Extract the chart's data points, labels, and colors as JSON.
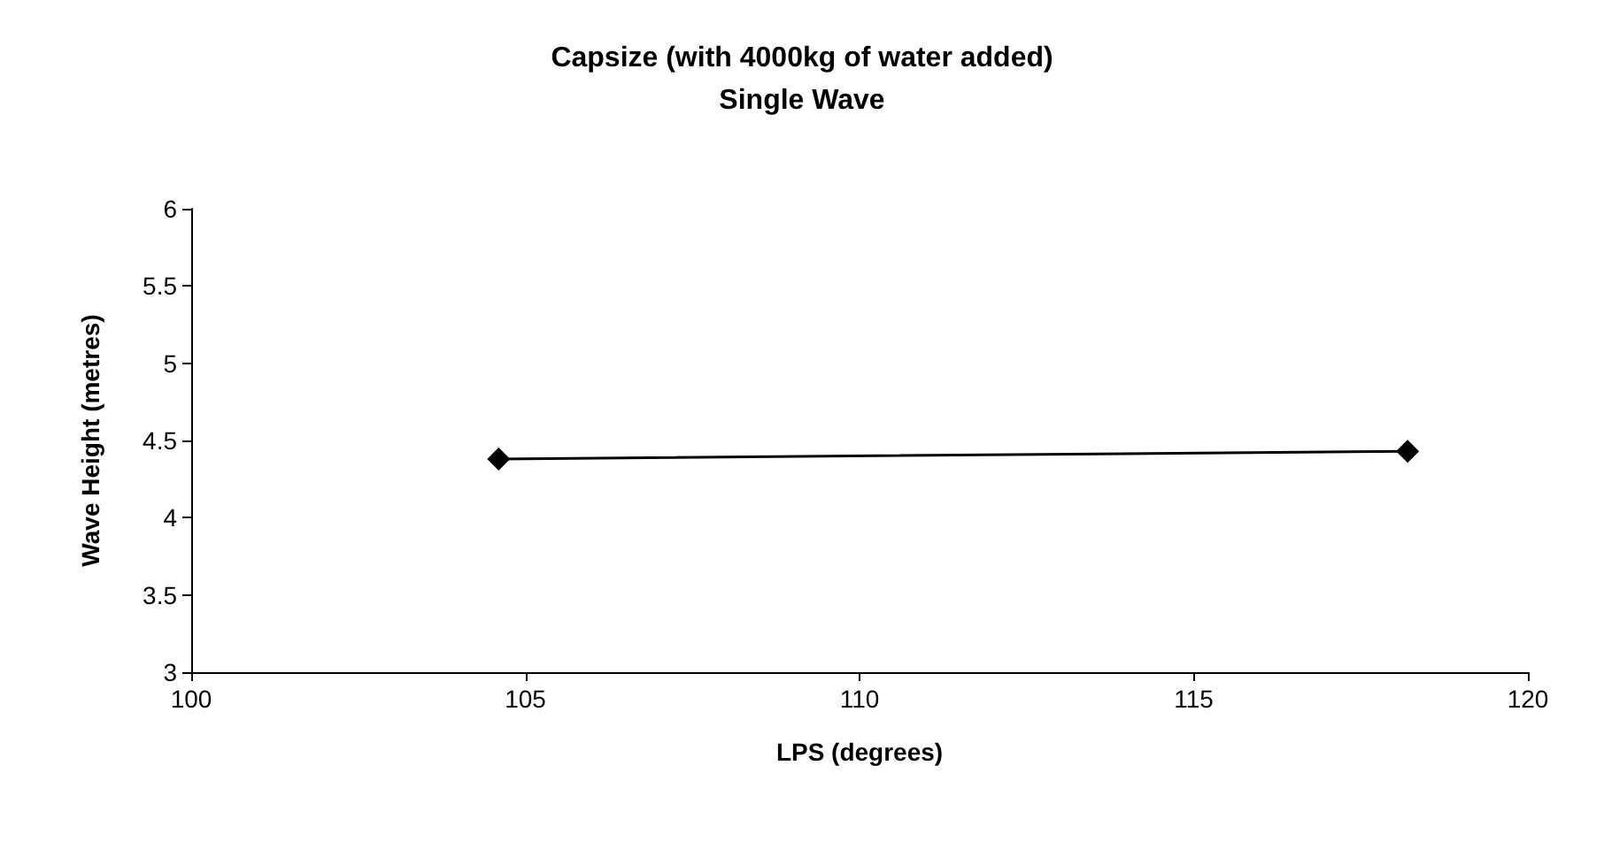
{
  "chart_data": {
    "type": "line",
    "title": "Capsize (with 4000kg of water added)\nSingle Wave",
    "xlabel": "LPS (degrees)",
    "ylabel": "Wave Height (metres)",
    "x": [
      104.6,
      118.2
    ],
    "series": [
      {
        "color": "#000000",
        "values": [
          4.38,
          4.43
        ]
      }
    ],
    "xlim": [
      100,
      120
    ],
    "xticks": [
      100,
      105,
      110,
      115,
      120
    ],
    "ylim": [
      3,
      6
    ],
    "yticks": [
      3,
      3.5,
      4,
      4.5,
      5,
      5.5,
      6
    ],
    "marker": "diamond",
    "line_style": "solid",
    "grid": false
  }
}
